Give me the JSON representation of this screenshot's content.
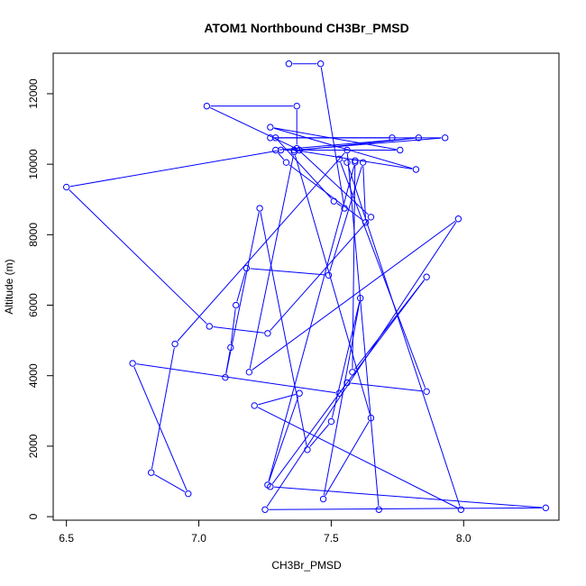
{
  "chart_data": {
    "type": "line",
    "title": "ATOM1 Northbound CH3Br_PMSD",
    "xlabel": "CH3Br_PMSD",
    "ylabel": "Altitude (m)",
    "xlim": [
      6.45,
      8.36
    ],
    "ylim": [
      -100,
      13150
    ],
    "x_ticks": [
      6.5,
      7.0,
      7.5,
      8.0
    ],
    "x_tick_labels": [
      "6.5",
      "7.0",
      "7.5",
      "8.0"
    ],
    "y_ticks": [
      0,
      2000,
      4000,
      6000,
      8000,
      10000,
      12000
    ],
    "y_tick_labels": [
      "0",
      "2000",
      "4000",
      "6000",
      "8000",
      "10000",
      "12000"
    ],
    "series": [
      {
        "color": "#0000ff",
        "marker": "open-circle",
        "x": [
          7.34,
          7.46,
          7.55,
          7.51,
          7.29,
          7.73,
          7.27,
          7.93,
          7.36,
          7.82,
          7.27,
          7.76,
          7.31,
          6.5,
          7.04,
          7.26,
          7.65,
          7.37,
          7.37,
          7.03,
          7.38,
          7.83,
          7.29,
          7.33,
          7.63,
          7.62,
          7.49,
          7.18,
          7.14,
          7.12,
          7.1,
          7.23,
          7.41,
          7.5,
          7.61,
          7.47,
          7.65,
          7.36,
          7.19,
          7.98,
          7.25,
          8.31,
          7.27,
          7.56,
          7.86,
          7.53,
          7.56,
          7.99,
          7.21,
          7.38,
          7.26,
          7.59,
          7.59,
          7.58,
          7.86,
          7.53,
          6.75,
          6.96,
          6.82,
          6.91,
          7.56,
          7.68
        ],
        "y": [
          12850,
          12850,
          8750,
          8950,
          10750,
          10750,
          10750,
          10750,
          10400,
          9850,
          11050,
          10400,
          10400,
          9350,
          5400,
          5200,
          8500,
          10450,
          11650,
          11650,
          10400,
          10750,
          10400,
          10050,
          8350,
          10050,
          6850,
          7050,
          6000,
          4800,
          3950,
          8750,
          1900,
          2700,
          6200,
          500,
          2800,
          10350,
          4100,
          8450,
          200,
          250,
          850,
          3800,
          3550,
          10150,
          10050,
          200,
          3150,
          3500,
          900,
          10050,
          10100,
          4100,
          6800,
          3500,
          4350,
          650,
          1250,
          4900,
          10400,
          200
        ]
      }
    ]
  }
}
